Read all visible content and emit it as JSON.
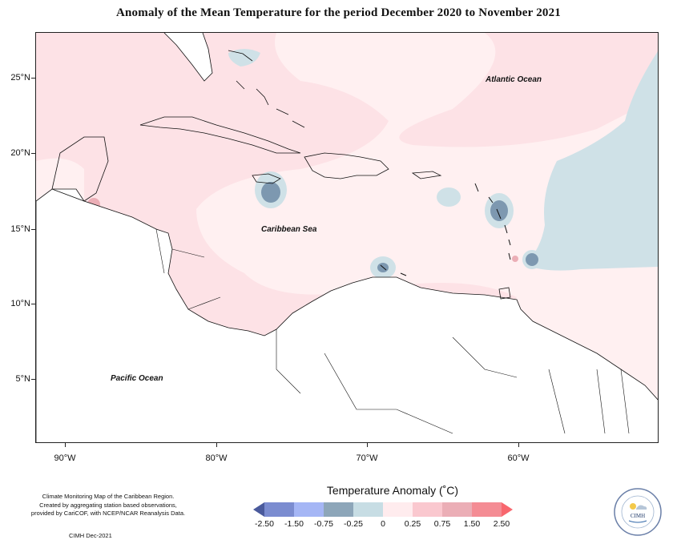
{
  "title": "Anomaly of the Mean Temperature for the period December 2020 to November 2021",
  "axes": {
    "y_labels": [
      "25°N",
      "20°N",
      "15°N",
      "10°N",
      "5°N"
    ],
    "x_labels": [
      "90°W",
      "80°W",
      "70°W",
      "60°W"
    ]
  },
  "map_labels": {
    "atlantic": "Atlantic Ocean",
    "caribbean": "Caribbean Sea",
    "pacific": "Pacific Ocean"
  },
  "credits": {
    "line1": "Climate Monitoring Map of the Caribbean Region.",
    "line2": "Created by aggregating station based observations,",
    "line3": "provided by CariCOF, with NCEP/NCAR Reanalysis Data.",
    "date": "CIMH Dec-2021"
  },
  "legend": {
    "title": "Temperature Anomaly (˚C)",
    "labels": [
      "-2.50",
      "-1.50",
      "-0.75",
      "-0.25",
      "0",
      "0.25",
      "0.75",
      "1.50",
      "2.50"
    ],
    "colors": [
      "#4a5a9c",
      "#7b8cd0",
      "#a5b6f5",
      "#8da6b9",
      "#c7dde4",
      "#ffecee",
      "#fac8cf",
      "#ebaeb6",
      "#f48c94",
      "#f8676e"
    ]
  },
  "logo": {
    "text": "CIMH",
    "ring_text": "Caribbean Institute for Meteorology and Hydrology"
  },
  "colors": {
    "positive_light": "#fde2e6",
    "positive_pale": "#fff0f1",
    "negative_light": "#cfe1e7",
    "negative_mid": "#7d98b0"
  }
}
